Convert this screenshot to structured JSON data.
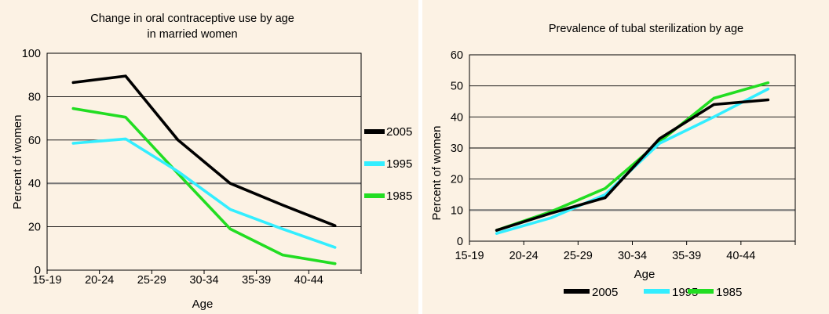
{
  "colors": {
    "background": "#fcf2e4",
    "gridline": "#000000",
    "series_2005": "#000000",
    "series_1995": "#33eeff",
    "series_1985": "#22dd22"
  },
  "chart_data": [
    {
      "type": "line",
      "title_lines": [
        "Change in oral contraceptive use by age",
        "in married women"
      ],
      "xlabel": "Age",
      "ylabel": "Percent of women",
      "categories": [
        "15-19",
        "20-24",
        "25-29",
        "30-34",
        "35-39",
        "40-44"
      ],
      "yticks": [
        "0",
        "20",
        "40",
        "60",
        "80",
        "100"
      ],
      "ylim": [
        0,
        100
      ],
      "legend_position": "right",
      "highlight_gridline": 40,
      "series": [
        {
          "name": "2005",
          "color": "#000000",
          "x": [
            0.5,
            1.5,
            2.5,
            3.5,
            4.5,
            5.5
          ],
          "values": [
            86.5,
            89.5,
            60,
            40,
            30,
            20.5
          ]
        },
        {
          "name": "1995",
          "color": "#33eeff",
          "x": [
            0.5,
            1.5,
            2.5,
            3.5,
            4.5,
            5.5
          ],
          "values": [
            58.5,
            60.5,
            45.5,
            28,
            19,
            10.5
          ]
        },
        {
          "name": "1985",
          "color": "#22dd22",
          "x": [
            0.5,
            1.5,
            2.5,
            3.5,
            4.5,
            5.5
          ],
          "values": [
            74.5,
            70.5,
            44.5,
            19,
            7,
            3
          ]
        }
      ]
    },
    {
      "type": "line",
      "title_lines": [
        "Prevalence of tubal sterilization by age"
      ],
      "xlabel": "Age",
      "ylabel": "Percent of women",
      "categories": [
        "15-19",
        "20-24",
        "25-29",
        "30-34",
        "35-39",
        "40-44"
      ],
      "yticks": [
        "0",
        "10",
        "20",
        "30",
        "40",
        "50",
        "60"
      ],
      "ylim": [
        0,
        60
      ],
      "legend_position": "bottom",
      "highlight_gridline": 10,
      "series": [
        {
          "name": "2005",
          "color": "#000000",
          "x": [
            0.5,
            1.5,
            2.5,
            3.5,
            4.5,
            5.5
          ],
          "values": [
            3.5,
            9,
            14,
            33,
            44,
            45.5
          ]
        },
        {
          "name": "1995",
          "color": "#33eeff",
          "x": [
            0.5,
            1.5,
            2.5,
            3.5,
            4.5,
            5.5
          ],
          "values": [
            2.5,
            7.5,
            15,
            31.5,
            40,
            49
          ]
        },
        {
          "name": "1985",
          "color": "#22dd22",
          "x": [
            0.5,
            1.5,
            2.5,
            3.5,
            4.5,
            5.5
          ],
          "values": [
            3.5,
            9.5,
            17,
            32,
            46,
            51
          ]
        }
      ]
    }
  ]
}
